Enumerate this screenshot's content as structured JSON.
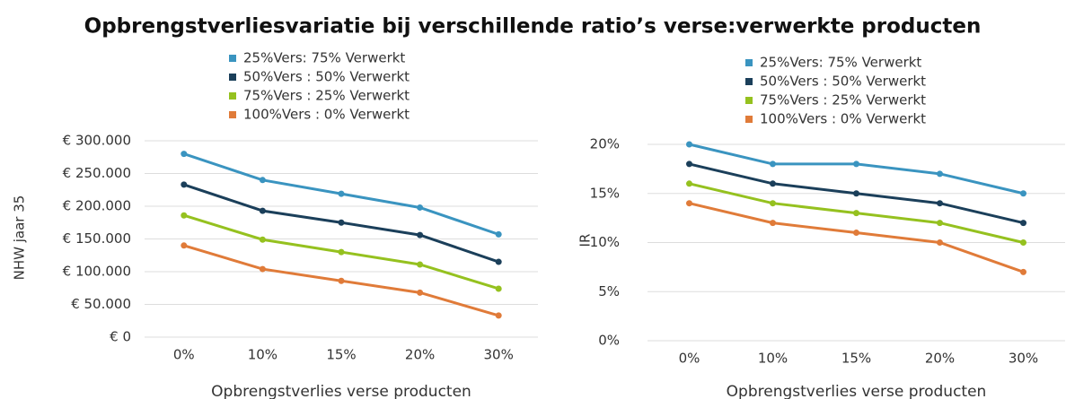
{
  "title": "Opbrengstverliesvariatie bij verschillende ratio’s verse:verwerkte producten",
  "chart_data": [
    {
      "type": "line",
      "y_label": "NHW jaar 35",
      "x_label": "Opbrengstverlies verse producten",
      "categories": [
        "0%",
        "10%",
        "15%",
        "20%",
        "30%"
      ],
      "ylim": [
        0,
        300000
      ],
      "yticks": [
        {
          "value": 0,
          "label": "€ 0"
        },
        {
          "value": 50000,
          "label": "€ 50.000"
        },
        {
          "value": 100000,
          "label": "€ 100.000"
        },
        {
          "value": 150000,
          "label": "€ 150.000"
        },
        {
          "value": 200000,
          "label": "€ 200.000"
        },
        {
          "value": 250000,
          "label": "€ 250.000"
        },
        {
          "value": 300000,
          "label": "€ 300.000"
        }
      ],
      "grid": true,
      "series": [
        {
          "name": "25%Vers: 75% Verwerkt",
          "color": "#3a94c0",
          "values": [
            280000,
            240000,
            219000,
            198000,
            157000
          ]
        },
        {
          "name": "50%Vers : 50% Verwerkt",
          "color": "#1b3f5a",
          "values": [
            233000,
            193000,
            175000,
            156000,
            115000
          ]
        },
        {
          "name": "75%Vers : 25% Verwerkt",
          "color": "#95c11f",
          "values": [
            186000,
            149000,
            130000,
            111000,
            74000
          ]
        },
        {
          "name": "100%Vers : 0% Verwerkt",
          "color": "#e07b39",
          "values": [
            140000,
            104000,
            86000,
            68000,
            33000
          ]
        }
      ]
    },
    {
      "type": "line",
      "y_label": "IR",
      "x_label": "Opbrengstverlies verse producten",
      "categories": [
        "0%",
        "10%",
        "15%",
        "20%",
        "30%"
      ],
      "ylim": [
        0,
        20
      ],
      "yticks": [
        {
          "value": 0,
          "label": "0%"
        },
        {
          "value": 5,
          "label": "5%"
        },
        {
          "value": 10,
          "label": "10%"
        },
        {
          "value": 15,
          "label": "15%"
        },
        {
          "value": 20,
          "label": "20%"
        }
      ],
      "grid": true,
      "series": [
        {
          "name": "25%Vers: 75% Verwerkt",
          "color": "#3a94c0",
          "values": [
            20,
            18,
            18,
            17,
            15
          ]
        },
        {
          "name": "50%Vers : 50% Verwerkt",
          "color": "#1b3f5a",
          "values": [
            18,
            16,
            15,
            14,
            12
          ]
        },
        {
          "name": "75%Vers : 25% Verwerkt",
          "color": "#95c11f",
          "values": [
            16,
            14,
            13,
            12,
            10
          ]
        },
        {
          "name": "100%Vers : 0% Verwerkt",
          "color": "#e07b39",
          "values": [
            14,
            12,
            11,
            10,
            7
          ]
        }
      ]
    }
  ]
}
